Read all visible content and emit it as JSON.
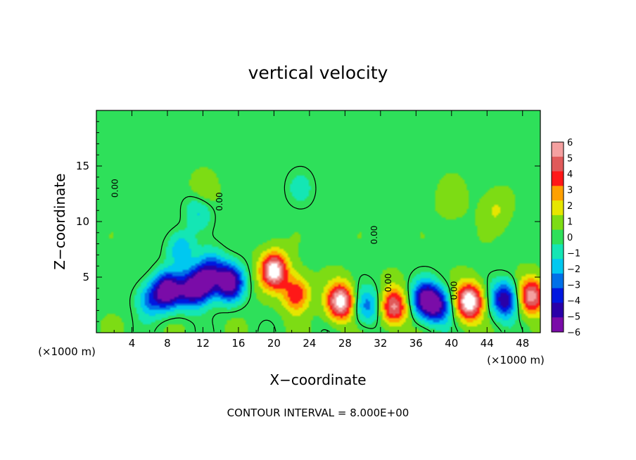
{
  "chart_data": {
    "type": "heatmap",
    "title": "vertical velocity",
    "xlabel": "X−coordinate",
    "ylabel": "Z−coordinate",
    "x_unit_left": "(×1000 m)",
    "x_unit_right": "(×1000 m)",
    "xlim": [
      0,
      50
    ],
    "ylim": [
      0,
      20
    ],
    "x_ticks": [
      4,
      8,
      12,
      16,
      20,
      24,
      28,
      32,
      36,
      40,
      44,
      48
    ],
    "y_ticks": [
      5,
      10,
      15
    ],
    "colorbar": {
      "min": -6,
      "max": 6,
      "ticks": [
        6,
        5,
        4,
        3,
        2,
        1,
        0,
        -1,
        -2,
        -3,
        -4,
        -5,
        -6
      ],
      "tick_labels": [
        "6",
        "5",
        "4",
        "3",
        "2",
        "1",
        "0",
        "−1",
        "−2",
        "−3",
        "−4",
        "−5",
        "−6"
      ],
      "colors": [
        "#7a0ca8",
        "#2a00a8",
        "#0018e0",
        "#0070e8",
        "#00c8f0",
        "#14e6b4",
        "#2ee05a",
        "#7ddc14",
        "#e6e600",
        "#ffa000",
        "#ff1818",
        "#e05a5a",
        "#f4a0a0"
      ]
    },
    "background_level": 0.3,
    "features": [
      {
        "x": 8,
        "z": 3.8,
        "value": -6.5
      },
      {
        "x": 10.5,
        "z": 3.8,
        "value": -4.5
      },
      {
        "x": 12,
        "z": 4.4,
        "value": -5.5
      },
      {
        "x": 15,
        "z": 4.5,
        "value": -6.5
      },
      {
        "x": 13,
        "z": 5.8,
        "value": -3
      },
      {
        "x": 9.5,
        "z": 7.5,
        "value": -2.5
      },
      {
        "x": 11.5,
        "z": 11,
        "value": -2
      },
      {
        "x": 6,
        "z": 3,
        "value": -3
      },
      {
        "x": 20,
        "z": 5.6,
        "value": 6.5
      },
      {
        "x": 22.5,
        "z": 3.5,
        "value": 4
      },
      {
        "x": 27.5,
        "z": 2.8,
        "value": 6.5
      },
      {
        "x": 30.5,
        "z": 2.4,
        "value": -3
      },
      {
        "x": 33.5,
        "z": 2.3,
        "value": 5
      },
      {
        "x": 37,
        "z": 3,
        "value": -5.5
      },
      {
        "x": 38.5,
        "z": 2.4,
        "value": -4.5
      },
      {
        "x": 42,
        "z": 2.8,
        "value": 7
      },
      {
        "x": 46,
        "z": 3,
        "value": -5.5
      },
      {
        "x": 49,
        "z": 3.3,
        "value": 5.5
      },
      {
        "x": 12,
        "z": 12.5,
        "value": 1.1
      },
      {
        "x": 23,
        "z": 13,
        "value": -1.2
      },
      {
        "x": 40,
        "z": 12,
        "value": 0.9
      },
      {
        "x": 45,
        "z": 11,
        "value": 1.2
      }
    ],
    "contour_labels": [
      {
        "text": "0.00",
        "x": 2.4,
        "z": 13
      },
      {
        "text": "0.00",
        "x": 14.2,
        "z": 11.8
      },
      {
        "text": "0.00",
        "x": 31.6,
        "z": 8.8
      },
      {
        "text": "0.00",
        "x": 33.2,
        "z": 4.5
      },
      {
        "text": "0.00",
        "x": 40.6,
        "z": 3.8
      }
    ],
    "footer": "CONTOUR INTERVAL = 8.000E+00"
  }
}
